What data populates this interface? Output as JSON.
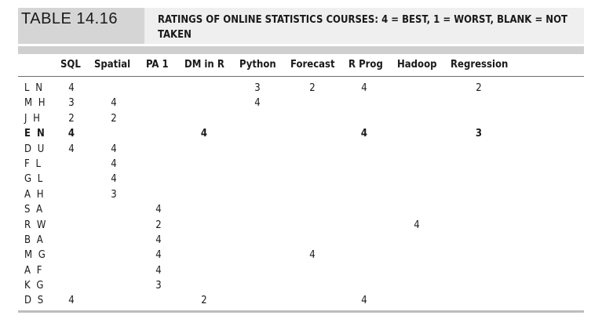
{
  "table": {
    "label": "TABLE 14.16",
    "caption": "RATINGS OF ONLINE STATISTICS COURSES: 4 = BEST, 1 = WORST, BLANK = NOT TAKEN",
    "columns": [
      "SQL",
      "Spatial",
      "PA 1",
      "DM in R",
      "Python",
      "Forecast",
      "R Prog",
      "Hadoop",
      "Regression"
    ],
    "rows": [
      {
        "name": "L N",
        "values": [
          "4",
          "",
          "",
          "",
          "3",
          "2",
          "4",
          "",
          "2"
        ],
        "bold": false
      },
      {
        "name": "M H",
        "values": [
          "3",
          "4",
          "",
          "",
          "4",
          "",
          "",
          "",
          ""
        ],
        "bold": false
      },
      {
        "name": "J H",
        "values": [
          "2",
          "2",
          "",
          "",
          "",
          "",
          "",
          "",
          ""
        ],
        "bold": false
      },
      {
        "name": "E N",
        "values": [
          "4",
          "",
          "",
          "4",
          "",
          "",
          "4",
          "",
          "3"
        ],
        "bold": true
      },
      {
        "name": "D U",
        "values": [
          "4",
          "4",
          "",
          "",
          "",
          "",
          "",
          "",
          ""
        ],
        "bold": false
      },
      {
        "name": "F L",
        "values": [
          "",
          "4",
          "",
          "",
          "",
          "",
          "",
          "",
          ""
        ],
        "bold": false
      },
      {
        "name": "G L",
        "values": [
          "",
          "4",
          "",
          "",
          "",
          "",
          "",
          "",
          ""
        ],
        "bold": false
      },
      {
        "name": "A H",
        "values": [
          "",
          "3",
          "",
          "",
          "",
          "",
          "",
          "",
          ""
        ],
        "bold": false
      },
      {
        "name": "S A",
        "values": [
          "",
          "",
          "4",
          "",
          "",
          "",
          "",
          "",
          ""
        ],
        "bold": false
      },
      {
        "name": "R W",
        "values": [
          "",
          "",
          "2",
          "",
          "",
          "",
          "",
          "4",
          ""
        ],
        "bold": false
      },
      {
        "name": "B A",
        "values": [
          "",
          "",
          "4",
          "",
          "",
          "",
          "",
          "",
          ""
        ],
        "bold": false
      },
      {
        "name": "M G",
        "values": [
          "",
          "",
          "4",
          "",
          "",
          "4",
          "",
          "",
          ""
        ],
        "bold": false
      },
      {
        "name": "A F",
        "values": [
          "",
          "",
          "4",
          "",
          "",
          "",
          "",
          "",
          ""
        ],
        "bold": false
      },
      {
        "name": "K G",
        "values": [
          "",
          "",
          "3",
          "",
          "",
          "",
          "",
          "",
          ""
        ],
        "bold": false
      },
      {
        "name": "D S",
        "values": [
          "4",
          "",
          "",
          "2",
          "",
          "",
          "4",
          "",
          ""
        ],
        "bold": false
      }
    ]
  }
}
